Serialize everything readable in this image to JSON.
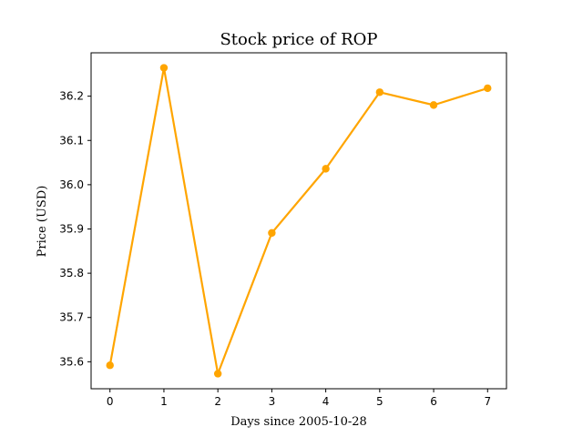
{
  "chart_data": {
    "type": "line",
    "title": "Stock price of ROP",
    "xlabel": "Days since 2005-10-28",
    "ylabel": "Price (USD)",
    "x": [
      0,
      1,
      2,
      3,
      4,
      5,
      6,
      7
    ],
    "series": [
      {
        "values": [
          35.592,
          36.264,
          35.573,
          35.891,
          36.036,
          36.209,
          36.18,
          36.218
        ],
        "color": "#FFA500"
      }
    ],
    "xticks": [
      "0",
      "1",
      "2",
      "3",
      "4",
      "5",
      "6",
      "7"
    ],
    "yticks": [
      "35.6",
      "35.7",
      "35.8",
      "35.9",
      "36.0",
      "36.1",
      "36.2"
    ],
    "xlim": [
      -0.35,
      7.35
    ],
    "ylim": [
      35.539,
      36.298
    ],
    "grid": false,
    "legend": "none"
  }
}
